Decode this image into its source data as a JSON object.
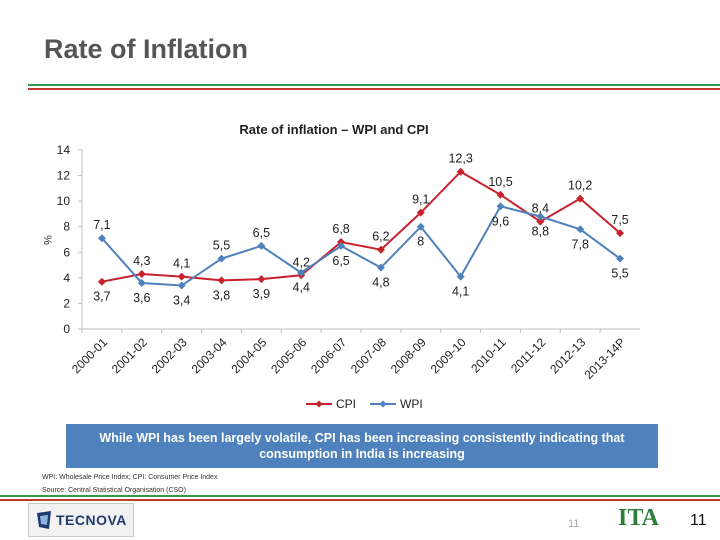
{
  "slide": {
    "title": "Rate of Inflation",
    "callout": "While WPI has been largely volatile, CPI has been increasing consistently indicating that consumption in India is increasing",
    "footnote_abbrev": "WPI: Wholesale Price Index; CPI: Consumer Price Index",
    "footnote_source": "Source: Central Statistical Organisation (CSO)",
    "logo_left": "TECNOVA",
    "logo_right": "ITA",
    "page_number": "11",
    "page_number_faint": "11"
  },
  "colors": {
    "title": "#555555",
    "rule_green": "#2e9b4b",
    "rule_red": "#c0392b",
    "cpi": "#c8232c",
    "wpi": "#4f81bd",
    "callout_bg": "#4f81bd"
  },
  "chart_data": {
    "type": "line",
    "title": "Rate of inflation – WPI and CPI",
    "xlabel": "",
    "ylabel": "%",
    "ylim": [
      0,
      14
    ],
    "yticks": [
      0,
      2,
      4,
      6,
      8,
      10,
      12,
      14
    ],
    "grid": false,
    "legend": "bottom",
    "categories": [
      "2000-01",
      "2001-02",
      "2002-03",
      "2003-04",
      "2004-05",
      "2005-06",
      "2006-07",
      "2007-08",
      "2008-09",
      "2009-10",
      "2010-11",
      "2011-12",
      "2012-13",
      "2013-14P"
    ],
    "series": [
      {
        "name": "CPI",
        "color": "#c8232c",
        "marker": "diamond",
        "values": [
          3.7,
          4.3,
          4.1,
          3.8,
          3.9,
          4.2,
          6.8,
          6.2,
          9.1,
          12.3,
          10.5,
          8.4,
          10.2,
          7.5
        ],
        "labels": [
          "3,7",
          "4,3",
          "4,1",
          "3,8",
          "3,9",
          "4,2",
          "6,8",
          "6,2",
          "9,1",
          "12,3",
          "10,5",
          "8,4",
          "10,2",
          "7,5"
        ]
      },
      {
        "name": "WPI",
        "color": "#4f81bd",
        "marker": "diamond",
        "values": [
          7.1,
          3.6,
          3.4,
          5.5,
          6.5,
          4.4,
          6.5,
          4.8,
          8.0,
          4.1,
          9.6,
          8.8,
          7.8,
          5.5
        ],
        "labels": [
          "7,1",
          "3,6",
          "3,4",
          "5,5",
          "6,5",
          "4,4",
          "6,5",
          "4,8",
          "8",
          "4,1",
          "9,6",
          "8,8",
          "7,8",
          "5,5"
        ]
      }
    ]
  }
}
